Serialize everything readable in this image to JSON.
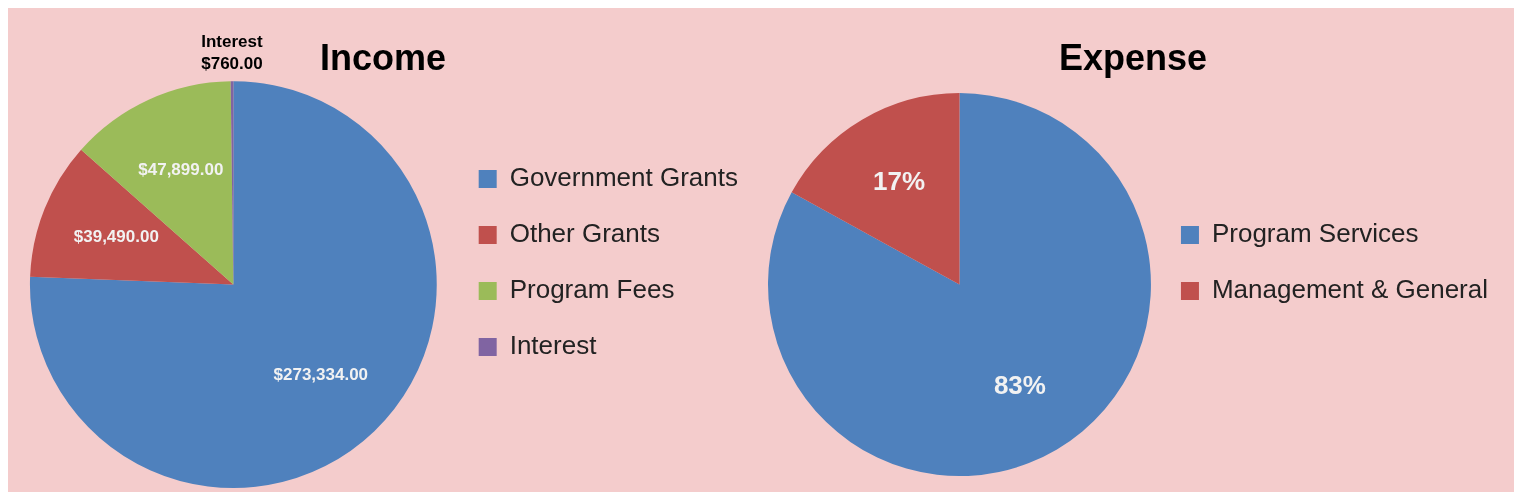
{
  "chart_data": [
    {
      "type": "pie",
      "title": "Income",
      "categories": [
        "Government Grants",
        "Other Grants",
        "Program Fees",
        "Interest"
      ],
      "values": [
        273334,
        39490,
        47899,
        760
      ],
      "colors": [
        "#4f81bd",
        "#c0504d",
        "#9bbb59",
        "#8064a2"
      ],
      "value_labels": [
        "$273,334.00",
        "$39,490.00",
        "$47,899.00",
        "$760.00"
      ],
      "annotations": [
        {
          "text": "Interest",
          "x": "Interest"
        }
      ],
      "legend": "right"
    },
    {
      "type": "pie",
      "title": "Expense",
      "categories": [
        "Program Services",
        "Management & General"
      ],
      "values": [
        83,
        17
      ],
      "colors": [
        "#4f81bd",
        "#c0504d"
      ],
      "value_labels": [
        "83%",
        "17%"
      ],
      "legend": "right"
    }
  ]
}
